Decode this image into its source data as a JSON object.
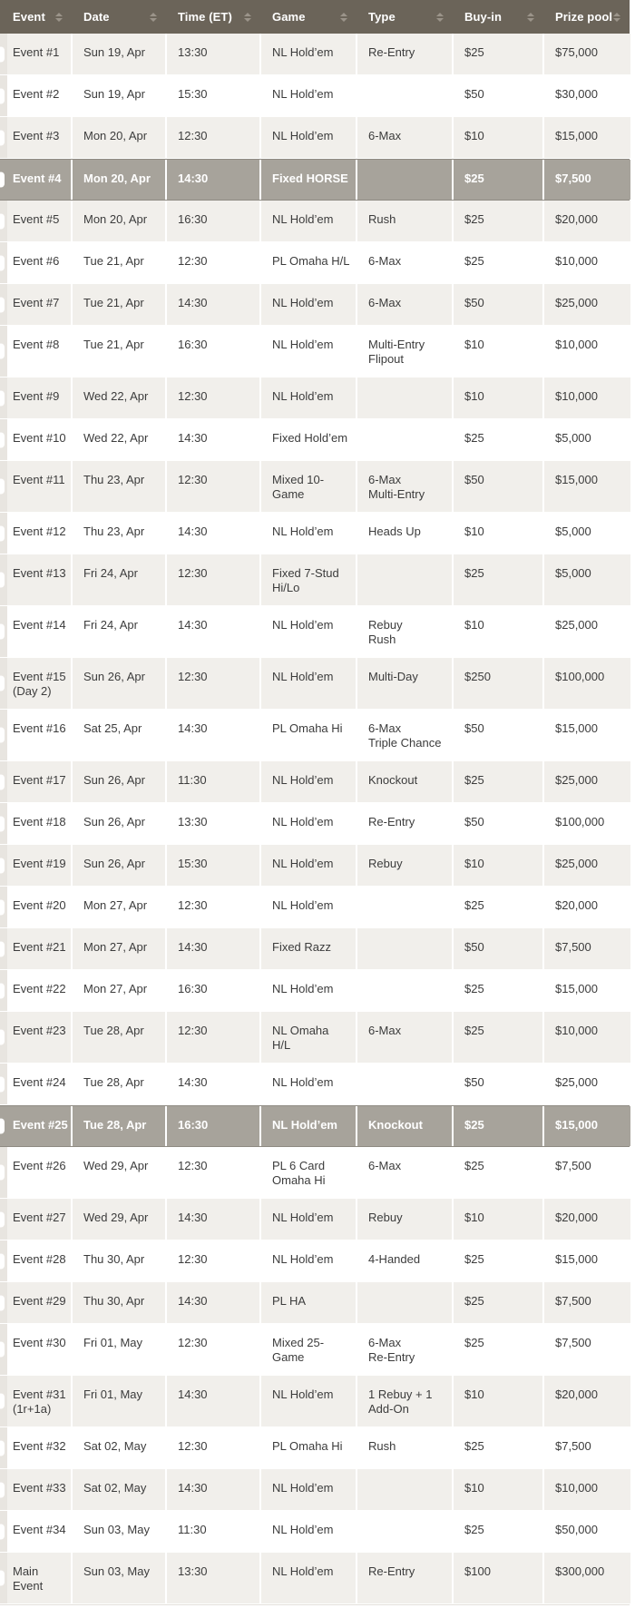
{
  "colors": {
    "header_bg": "#6B6459",
    "header_text": "#FFFFFF",
    "sort_icon": "#9B948A",
    "row_alt_bg": "#F1EFEB",
    "row_bg": "#FFFFFF",
    "selected_row_bg": "#A7A39B",
    "selected_row_border": "#8F8B83",
    "gutter_bg": "#E8E5E0",
    "cell_text": "#3C3C3C"
  },
  "table": {
    "columns": [
      {
        "key": "event",
        "label": "Event"
      },
      {
        "key": "date",
        "label": "Date"
      },
      {
        "key": "time",
        "label": "Time (ET)"
      },
      {
        "key": "game",
        "label": "Game"
      },
      {
        "key": "type",
        "label": "Type"
      },
      {
        "key": "buyin",
        "label": "Buy-in"
      },
      {
        "key": "prize",
        "label": "Prize pool"
      }
    ],
    "rows": [
      {
        "event": "Event #1",
        "date": "Sun 19, Apr",
        "time": "13:30",
        "game": "NL Hold’em",
        "type": "Re-Entry",
        "buyin": "$25",
        "prize": "$75,000",
        "selected": false
      },
      {
        "event": "Event #2",
        "date": "Sun 19, Apr",
        "time": "15:30",
        "game": "NL Hold’em",
        "type": "",
        "buyin": "$50",
        "prize": "$30,000",
        "selected": false
      },
      {
        "event": "Event #3",
        "date": "Mon 20, Apr",
        "time": "12:30",
        "game": "NL Hold’em",
        "type": "6-Max",
        "buyin": "$10",
        "prize": "$15,000",
        "selected": false
      },
      {
        "event": "Event #4",
        "date": "Mon 20, Apr",
        "time": "14:30",
        "game": "Fixed HORSE",
        "type": "",
        "buyin": "$25",
        "prize": "$7,500",
        "selected": true
      },
      {
        "event": "Event #5",
        "date": "Mon 20, Apr",
        "time": "16:30",
        "game": "NL Hold’em",
        "type": "Rush",
        "buyin": "$25",
        "prize": "$20,000",
        "selected": false
      },
      {
        "event": "Event #6",
        "date": "Tue 21, Apr",
        "time": "12:30",
        "game": "PL Omaha H/L",
        "type": "6-Max",
        "buyin": "$25",
        "prize": "$10,000",
        "selected": false
      },
      {
        "event": "Event #7",
        "date": "Tue 21, Apr",
        "time": "14:30",
        "game": "NL Hold’em",
        "type": "6-Max",
        "buyin": "$50",
        "prize": "$25,000",
        "selected": false
      },
      {
        "event": "Event #8",
        "date": "Tue 21, Apr",
        "time": "16:30",
        "game": "NL Hold’em",
        "type": "Multi-Entry\nFlipout",
        "buyin": "$10",
        "prize": "$10,000",
        "selected": false
      },
      {
        "event": "Event #9",
        "date": "Wed 22, Apr",
        "time": "12:30",
        "game": "NL Hold’em",
        "type": "",
        "buyin": "$10",
        "prize": "$10,000",
        "selected": false
      },
      {
        "event": "Event #10",
        "date": "Wed 22, Apr",
        "time": "14:30",
        "game": "Fixed Hold’em",
        "type": "",
        "buyin": "$25",
        "prize": "$5,000",
        "selected": false
      },
      {
        "event": "Event #11",
        "date": "Thu 23, Apr",
        "time": "12:30",
        "game": "Mixed 10-Game",
        "type": "6-Max\nMulti-Entry",
        "buyin": "$50",
        "prize": "$15,000",
        "selected": false
      },
      {
        "event": "Event #12",
        "date": "Thu 23, Apr",
        "time": "14:30",
        "game": "NL Hold’em",
        "type": "Heads Up",
        "buyin": "$10",
        "prize": "$5,000",
        "selected": false
      },
      {
        "event": "Event #13",
        "date": "Fri 24, Apr",
        "time": "12:30",
        "game": "Fixed 7-Stud\nHi/Lo",
        "type": "",
        "buyin": "$25",
        "prize": "$5,000",
        "selected": false
      },
      {
        "event": "Event #14",
        "date": "Fri 24, Apr",
        "time": "14:30",
        "game": "NL Hold’em",
        "type": "Rebuy\nRush",
        "buyin": "$10",
        "prize": "$25,000",
        "selected": false
      },
      {
        "event": "Event #15\n(Day 2)",
        "date": "Sun 26, Apr",
        "time": "12:30",
        "game": "NL Hold’em",
        "type": "Multi-Day",
        "buyin": "$250",
        "prize": "$100,000",
        "selected": false
      },
      {
        "event": "Event #16",
        "date": "Sat 25, Apr",
        "time": "14:30",
        "game": "PL Omaha Hi",
        "type": "6-Max\nTriple Chance",
        "buyin": "$50",
        "prize": "$15,000",
        "selected": false
      },
      {
        "event": "Event #17",
        "date": "Sun 26, Apr",
        "time": "11:30",
        "game": "NL Hold’em",
        "type": "Knockout",
        "buyin": "$25",
        "prize": "$25,000",
        "selected": false
      },
      {
        "event": "Event #18",
        "date": "Sun 26, Apr",
        "time": "13:30",
        "game": "NL Hold’em",
        "type": "Re-Entry",
        "buyin": "$50",
        "prize": "$100,000",
        "selected": false
      },
      {
        "event": "Event #19",
        "date": "Sun 26, Apr",
        "time": "15:30",
        "game": "NL Hold’em",
        "type": "Rebuy",
        "buyin": "$10",
        "prize": "$25,000",
        "selected": false
      },
      {
        "event": "Event #20",
        "date": "Mon 27, Apr",
        "time": "12:30",
        "game": "NL Hold’em",
        "type": "",
        "buyin": "$25",
        "prize": "$20,000",
        "selected": false
      },
      {
        "event": "Event #21",
        "date": "Mon 27, Apr",
        "time": "14:30",
        "game": "Fixed Razz",
        "type": "",
        "buyin": "$50",
        "prize": "$7,500",
        "selected": false
      },
      {
        "event": "Event #22",
        "date": "Mon 27, Apr",
        "time": "16:30",
        "game": "NL Hold’em",
        "type": "",
        "buyin": "$25",
        "prize": "$15,000",
        "selected": false
      },
      {
        "event": "Event #23",
        "date": "Tue 28, Apr",
        "time": "12:30",
        "game": "NL Omaha H/L",
        "type": "6-Max",
        "buyin": "$25",
        "prize": "$10,000",
        "selected": false
      },
      {
        "event": "Event #24",
        "date": "Tue 28, Apr",
        "time": "14:30",
        "game": "NL Hold’em",
        "type": "",
        "buyin": "$50",
        "prize": "$25,000",
        "selected": false
      },
      {
        "event": "Event #25",
        "date": "Tue 28, Apr",
        "time": "16:30",
        "game": "NL Hold’em",
        "type": "Knockout",
        "buyin": "$25",
        "prize": "$15,000",
        "selected": true
      },
      {
        "event": "Event #26",
        "date": "Wed 29, Apr",
        "time": "12:30",
        "game": "PL 6 Card\nOmaha Hi",
        "type": "6-Max",
        "buyin": "$25",
        "prize": "$7,500",
        "selected": false
      },
      {
        "event": "Event #27",
        "date": "Wed 29, Apr",
        "time": "14:30",
        "game": "NL Hold’em",
        "type": "Rebuy",
        "buyin": "$10",
        "prize": "$20,000",
        "selected": false
      },
      {
        "event": "Event #28",
        "date": "Thu 30, Apr",
        "time": "12:30",
        "game": "NL Hold’em",
        "type": "4-Handed",
        "buyin": "$25",
        "prize": "$15,000",
        "selected": false
      },
      {
        "event": "Event #29",
        "date": "Thu 30, Apr",
        "time": "14:30",
        "game": "PL HA",
        "type": "",
        "buyin": "$25",
        "prize": "$7,500",
        "selected": false
      },
      {
        "event": "Event #30",
        "date": "Fri 01, May",
        "time": "12:30",
        "game": "Mixed 25-Game",
        "type": "6-Max\nRe-Entry",
        "buyin": "$25",
        "prize": "$7,500",
        "selected": false
      },
      {
        "event": "Event #31\n(1r+1a)",
        "date": "Fri 01, May",
        "time": "14:30",
        "game": "NL Hold’em",
        "type": "1 Rebuy + 1\nAdd-On",
        "buyin": "$10",
        "prize": "$20,000",
        "selected": false
      },
      {
        "event": "Event #32",
        "date": "Sat 02, May",
        "time": "12:30",
        "game": "PL Omaha Hi",
        "type": "Rush",
        "buyin": "$25",
        "prize": "$7,500",
        "selected": false
      },
      {
        "event": "Event #33",
        "date": "Sat 02, May",
        "time": "14:30",
        "game": "NL Hold’em",
        "type": "",
        "buyin": "$10",
        "prize": "$10,000",
        "selected": false
      },
      {
        "event": "Event #34",
        "date": "Sun 03, May",
        "time": "11:30",
        "game": "NL Hold’em",
        "type": "",
        "buyin": "$25",
        "prize": "$50,000",
        "selected": false
      },
      {
        "event": "Main\nEvent",
        "date": "Sun 03, May",
        "time": "13:30",
        "game": "NL Hold’em",
        "type": "Re-Entry",
        "buyin": "$100",
        "prize": "$300,000",
        "selected": false
      }
    ]
  }
}
